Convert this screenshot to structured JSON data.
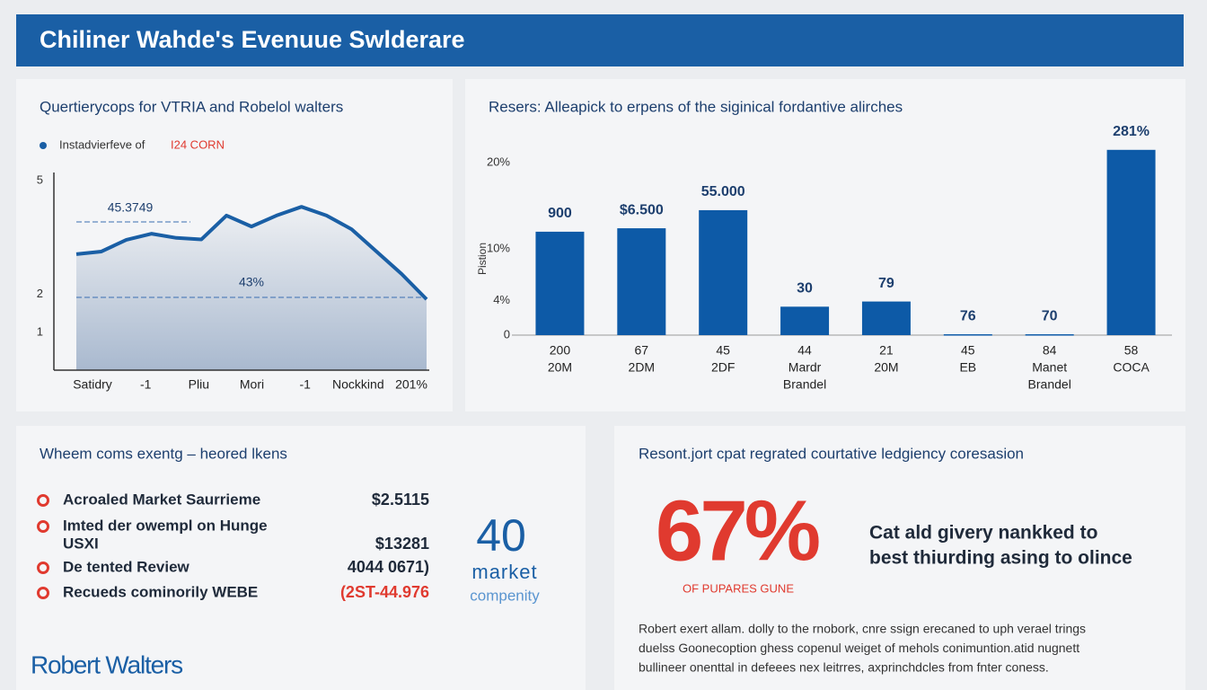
{
  "header": {
    "title": "Chiliner Wahde's Evenuue Swlderare"
  },
  "chart_data": [
    {
      "type": "line",
      "title": "Quertierycops for VTRIA and Robelol walters",
      "legend": {
        "text": "Instadvierfeve of",
        "highlight": "I24 CORN"
      },
      "values": [
        3.06,
        3.13,
        3.44,
        3.6,
        3.49,
        3.45,
        4.08,
        3.79,
        4.08,
        4.31,
        4.08,
        3.72,
        3.13,
        2.54,
        1.87
      ],
      "color": "#1a5fa5",
      "ylim": [
        0,
        5.5
      ],
      "yticks": [
        1,
        2,
        5
      ],
      "x_labels": [
        "Satidry",
        "-1",
        "Pliu",
        "Mori",
        "-1",
        "Nockkind",
        "201%"
      ],
      "annotations": [
        "45.3749",
        "43%"
      ]
    },
    {
      "type": "bar",
      "title": "Resers: Alleapick to erpens of the siginical fordantive alirches",
      "ylabel": "Pistion",
      "categories": [
        [
          "200",
          "20M"
        ],
        [
          "67",
          "2DM"
        ],
        [
          "45",
          "2DF"
        ],
        [
          "44",
          "Mardr",
          "Brandel"
        ],
        [
          "21",
          "20M"
        ],
        [
          "45",
          "EB"
        ],
        [
          "84",
          "Manet",
          "Brandel"
        ],
        [
          "58",
          "COCA"
        ]
      ],
      "values": [
        12,
        12.4,
        14.5,
        3.3,
        3.9,
        0.1,
        0.1,
        21.5
      ],
      "bar_labels": [
        "900",
        "$6.500",
        "55.000",
        "30",
        "79",
        "76",
        "70",
        "281%"
      ],
      "color": "#0d5aa7",
      "ylim": [
        0,
        22
      ],
      "yticks": [
        {
          "value": 0,
          "label": "0"
        },
        {
          "value": 4,
          "label": "4%"
        },
        {
          "value": 10,
          "label": "10%"
        },
        {
          "value": 20,
          "label": "20%"
        }
      ]
    }
  ],
  "panels": [
    {
      "title": "Wheem coms exentg – heored lkens",
      "items": [
        {
          "label": [
            "Acroaled Market Saurrieme"
          ],
          "value": "$2.5115"
        },
        {
          "label": [
            "Imted der owempl on Hunge",
            "USXI"
          ],
          "value": "$13281"
        },
        {
          "label": [
            "De tented Review"
          ],
          "value": "4044 0671)"
        },
        {
          "label": [
            "Recueds cominorily WEBE"
          ],
          "value": "(2ST-44.976"
        }
      ],
      "stat": {
        "number": "40",
        "lines": [
          "market",
          "compenity"
        ]
      },
      "logo": "Robert Walters"
    },
    {
      "title": "Resont.jort cpat regrated courtative ledgiency coresasion",
      "stat": "67%",
      "stat_caption": "OF PUPARES GUNE",
      "headline": [
        "Cat ald givery nankked to",
        "best thiurding asing to olince"
      ],
      "paragraph": [
        "Robert exert allam. dolly to the rnobork, cnre ssign erecaned to uph verael trings",
        "duelss Goonecoption ghess copenul weiget of mehols conimuntion.atid nugnett",
        "bullineer onenttal in defeees nex leitrres, axprinchdcles from fnter coness."
      ]
    }
  ]
}
